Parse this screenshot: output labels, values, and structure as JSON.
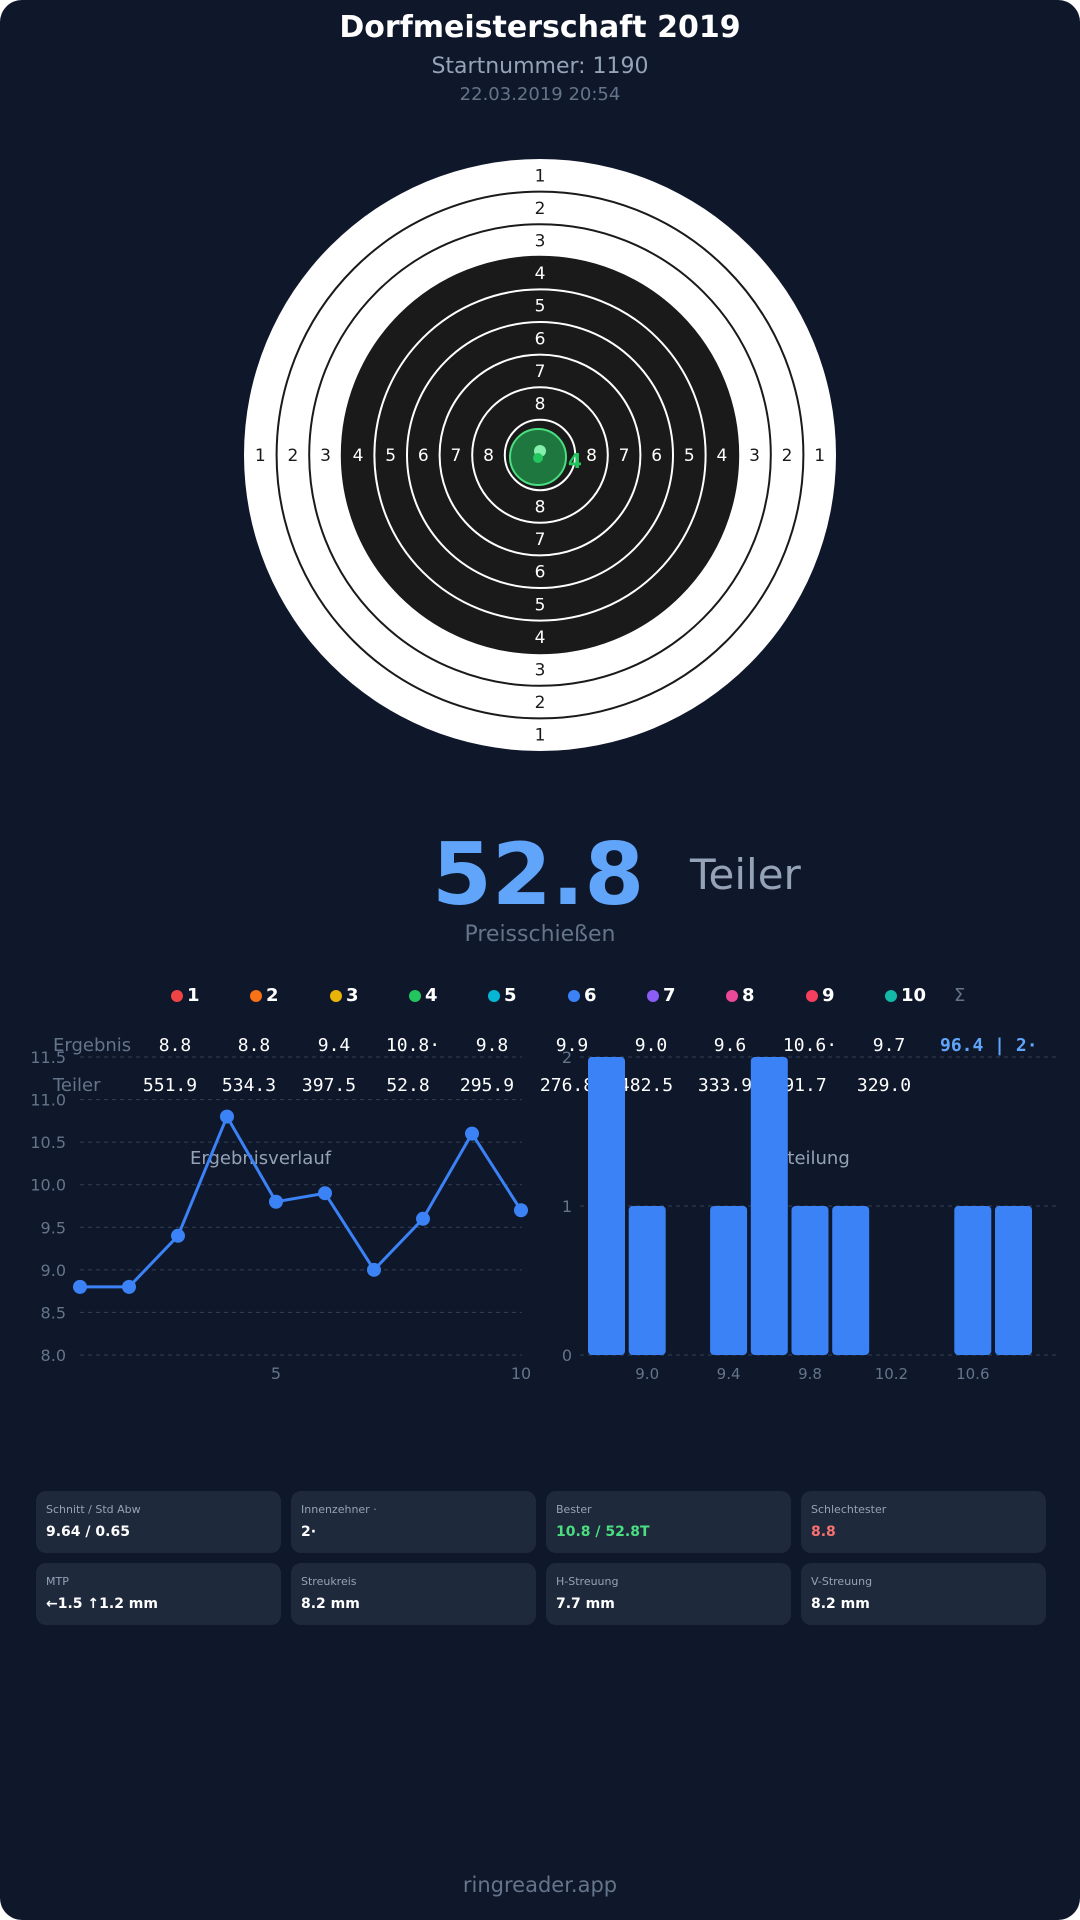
{
  "header": {
    "title": "Dorfmeisterschaft 2019",
    "start_number": "Startnummer: 1190",
    "datetime": "22.03.2019 20:54"
  },
  "target": {
    "ring_labels": [
      "1",
      "2",
      "3",
      "4",
      "5",
      "6",
      "7",
      "8"
    ],
    "shot_label": "4",
    "shot_color": "#22c55e"
  },
  "score": {
    "value": "52.8",
    "unit": "Teiler",
    "discipline": "Preisschießen"
  },
  "shots": {
    "headers": [
      "1",
      "2",
      "3",
      "4",
      "5",
      "6",
      "7",
      "8",
      "9",
      "10"
    ],
    "colors": [
      "#ef4444",
      "#f97316",
      "#eab308",
      "#22c55e",
      "#06b6d4",
      "#3b82f6",
      "#8b5cf6",
      "#ec4899",
      "#f43f5e",
      "#14b8a6"
    ],
    "sum_header": "Σ",
    "result_label": "Ergebnis",
    "results": [
      "8.8",
      "8.8",
      "9.4",
      "10.8·",
      "9.8",
      "9.9",
      "9.0",
      "9.6",
      "10.6·",
      "9.7"
    ],
    "result_sum": "96.4 | 2·",
    "teiler_label": "Teiler",
    "teiler": [
      "551.9",
      "534.3",
      "397.5",
      "52.8",
      "295.9",
      "276.8",
      "482.5",
      "333.9",
      "91.7",
      "329.0"
    ]
  },
  "chart_data": [
    {
      "type": "line",
      "title": "Ergebnisverlauf",
      "x": [
        1,
        2,
        3,
        4,
        5,
        6,
        7,
        8,
        9,
        10
      ],
      "values": [
        8.8,
        8.8,
        9.4,
        10.8,
        9.8,
        9.9,
        9.0,
        9.6,
        10.6,
        9.7
      ],
      "ylim": [
        8.0,
        11.5
      ],
      "yticks": [
        "8.0",
        "8.5",
        "9.0",
        "9.5",
        "10.0",
        "10.5",
        "11.0",
        "11.5"
      ],
      "xticks": [
        "5",
        "10"
      ],
      "grid": true,
      "color": "#3b82f6"
    },
    {
      "type": "bar",
      "title": "Verteilung",
      "categories": [
        "8.8",
        "9.0",
        "9.2",
        "9.4",
        "9.6",
        "9.8",
        "10.0",
        "10.2",
        "10.4",
        "10.6",
        "10.8"
      ],
      "values": [
        2,
        1,
        0,
        1,
        2,
        1,
        1,
        0,
        0,
        1,
        1
      ],
      "ylim": [
        0,
        2
      ],
      "yticks": [
        "0",
        "1",
        "2"
      ],
      "xticks": [
        "9.0",
        "9.4",
        "9.8",
        "10.2",
        "10.6"
      ],
      "grid": true,
      "color": "#3b82f6"
    }
  ],
  "stats": [
    {
      "label": "Schnitt / Std Abw",
      "value": "9.64 / 0.65",
      "color": "#ffffff"
    },
    {
      "label": "Innenzehner ·",
      "value": "2·",
      "color": "#ffffff"
    },
    {
      "label": "Bester",
      "value": "10.8 / 52.8T",
      "color": "#4ade80"
    },
    {
      "label": "Schlechtester",
      "value": "8.8",
      "color": "#f87171"
    },
    {
      "label": "MTP",
      "value": "←1.5 ↑1.2 mm",
      "color": "#ffffff"
    },
    {
      "label": "Streukreis",
      "value": "8.2 mm",
      "color": "#ffffff"
    },
    {
      "label": "H-Streuung",
      "value": "7.7 mm",
      "color": "#ffffff"
    },
    {
      "label": "V-Streuung",
      "value": "8.2 mm",
      "color": "#ffffff"
    }
  ],
  "footer": "ringreader.app"
}
